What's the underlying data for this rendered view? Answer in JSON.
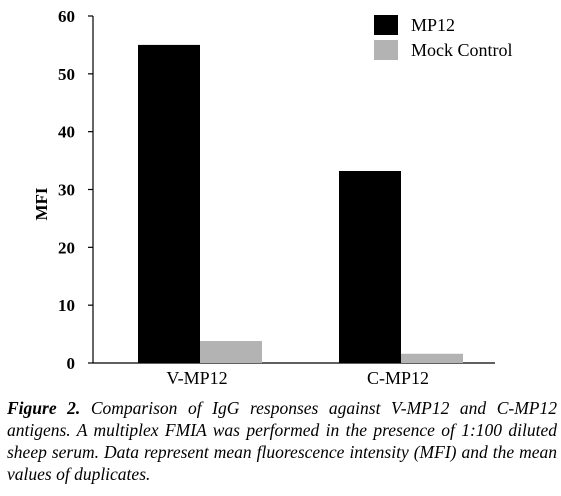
{
  "chart_data": {
    "type": "bar",
    "categories": [
      "V-MP12",
      "C-MP12"
    ],
    "series": [
      {
        "name": "MP12",
        "color": "#000000",
        "values": [
          55,
          33.2
        ]
      },
      {
        "name": "Mock Control",
        "color": "#b3b3b3",
        "values": [
          3.8,
          1.6
        ]
      }
    ],
    "ylabel": "MFI",
    "xlabel": "",
    "ylim": [
      0,
      60
    ],
    "yticks": [
      0,
      10,
      20,
      30,
      40,
      50,
      60
    ],
    "grid": false,
    "legend": "top-right"
  },
  "caption": {
    "figure_label": "Figure 2.",
    "text": "Comparison of IgG responses against V-MP12 and C-MP12 antigens. A multiplex FMIA was performed in the presence of 1:100 diluted sheep serum. Data represent mean fluorescence intensity (MFI) and the mean values of duplicates."
  }
}
